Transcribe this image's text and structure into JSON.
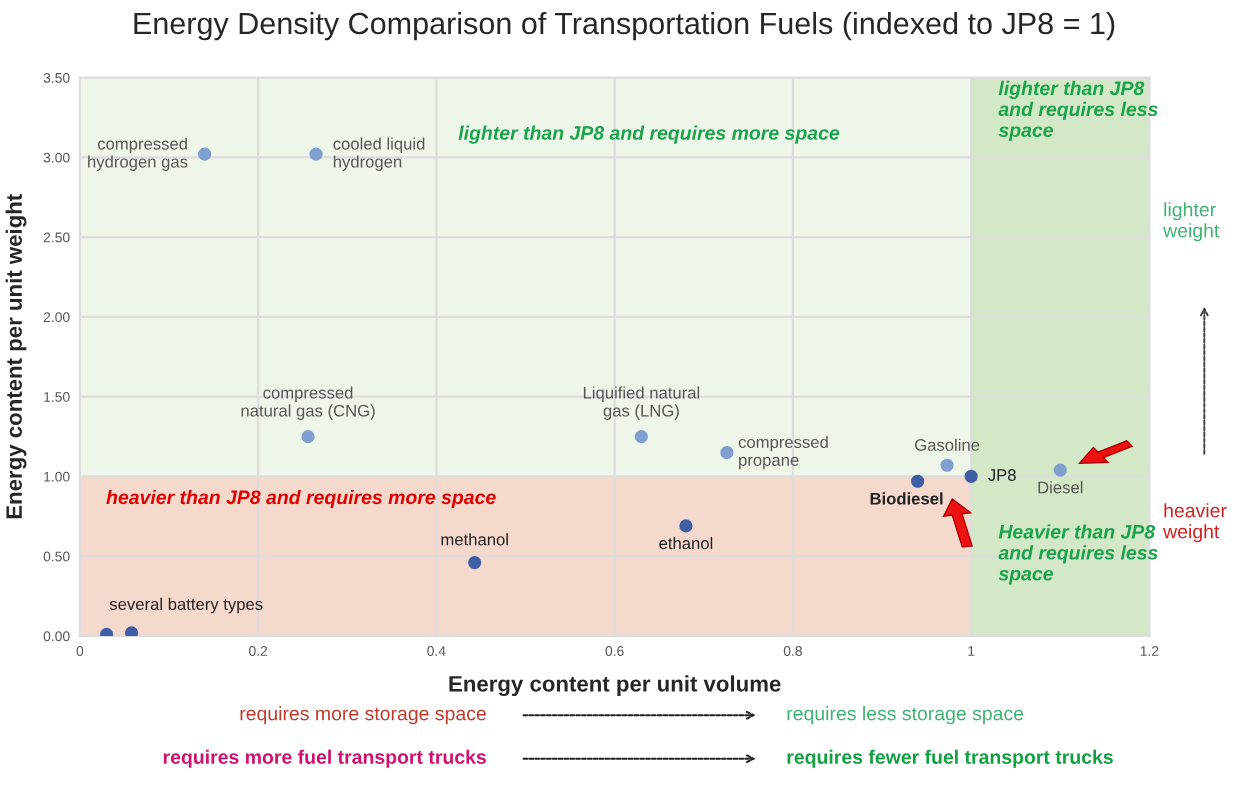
{
  "chart_data": {
    "type": "scatter",
    "title": "Energy Density Comparison of Transportation Fuels (indexed to JP8 = 1)",
    "xlabel": "Energy content per unit volume",
    "ylabel": "Energy content per unit weight",
    "series": [
      {
        "color": "#7f9fd0",
        "x": [
          0.14,
          0.265,
          0.256,
          0.63,
          0.726,
          0.973,
          1.1
        ],
        "values": [
          3.02,
          3.02,
          1.25,
          1.25,
          1.15,
          1.07,
          1.04
        ]
      },
      {
        "color": "#3f5ea6",
        "x": [
          0.03,
          0.058,
          0.443,
          0.68,
          0.94,
          1.0
        ],
        "values": [
          0.01,
          0.02,
          0.46,
          0.69,
          0.97,
          1.0
        ]
      }
    ],
    "xlim": [
      0,
      1.2
    ],
    "xticks": [
      0,
      0.2,
      0.4,
      0.6,
      0.8,
      1,
      1.2
    ],
    "ylim": [
      0,
      3.5
    ],
    "yticks": [
      {
        "value": 0,
        "label": "0.00"
      },
      {
        "value": 0.5,
        "label": "0.50"
      },
      {
        "value": 1,
        "label": "1.00"
      },
      {
        "value": 1.5,
        "label": "1.50"
      },
      {
        "value": 2,
        "label": "2.00"
      },
      {
        "value": 2.5,
        "label": "2.50"
      },
      {
        "value": 3,
        "label": "3.00"
      },
      {
        "value": 3.5,
        "label": "3.50"
      }
    ],
    "bands": [
      {
        "axis": "y",
        "from": 1,
        "to": 3.5,
        "color": "#eef6ea"
      },
      {
        "axis": "y",
        "from": 0,
        "to": 1,
        "color": "#f4d9cc"
      },
      {
        "axis": "x",
        "from": 1,
        "to": 1.2,
        "color": "#d3e8c6"
      }
    ],
    "annotations": [
      {
        "text": "compressed\nhydrogen gas",
        "x": 0.14,
        "y": 3.02
      },
      {
        "text": "cooled liquid\nhydrogen",
        "x": 0.265,
        "y": 3.02
      },
      {
        "text": "compressed\nnatural gas (CNG)",
        "x": 0.256,
        "y": 1.25
      },
      {
        "text": "Liquified natural\ngas (LNG)",
        "x": 0.63,
        "y": 1.25
      },
      {
        "text": "compressed\npropane",
        "x": 0.726,
        "y": 1.15
      },
      {
        "text": "Gasoline",
        "x": 0.973,
        "y": 1.07
      },
      {
        "text": "JP8",
        "x": 1.0,
        "y": 1.0
      },
      {
        "text": "Diesel",
        "x": 1.1,
        "y": 1.04
      },
      {
        "text": "Biodiesel",
        "x": 0.94,
        "y": 0.97
      },
      {
        "text": "methanol",
        "x": 0.443,
        "y": 0.46
      },
      {
        "text": "ethanol",
        "x": 0.68,
        "y": 0.69
      },
      {
        "text": "several battery types",
        "x": 0.058,
        "y": 0.02
      },
      "lighter than JP8 and requires more space",
      "lighter than JP8\nand requires less\nspace",
      "heavier than JP8 and requires more space",
      "Heavier than JP8\nand requires less\nspace",
      "lighter\nweight",
      "heavier\nweight",
      "requires more storage space",
      "requires less storage space",
      "requires more fuel transport trucks",
      "requires fewer fuel transport trucks"
    ],
    "grid": true,
    "marker": "circle"
  }
}
